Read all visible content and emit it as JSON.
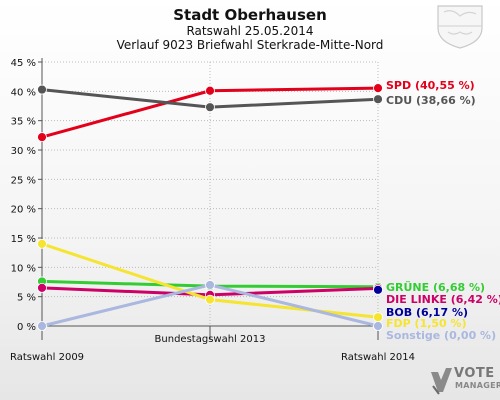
{
  "header": {
    "title": "Stadt Oberhausen",
    "subtitle": "Ratswahl 25.05.2014",
    "subsubtitle": "Verlauf 9023 Briefwahl Sterkrade-Mitte-Nord"
  },
  "logo": {
    "line1": "VOTE",
    "line2": "MANAGER"
  },
  "chart_data": {
    "type": "line",
    "title": "Stadt Oberhausen",
    "categories": [
      "Ratswahl 2009",
      "Bundestagswahl 2013",
      "Ratswahl 2014"
    ],
    "ylim": [
      0,
      45
    ],
    "yticks": [
      0,
      5,
      10,
      15,
      20,
      25,
      30,
      35,
      40,
      45
    ],
    "ytick_labels": [
      "0 %",
      "5 %",
      "10 %",
      "15 %",
      "20 %",
      "25 %",
      "30 %",
      "35 %",
      "40 %",
      "45 %"
    ],
    "grid": true,
    "series": [
      {
        "name": "SPD",
        "values": [
          32.2,
          40.1,
          40.55
        ],
        "color": "#e3001b",
        "label": "SPD (40,55 %)"
      },
      {
        "name": "CDU",
        "values": [
          40.3,
          37.3,
          38.66
        ],
        "color": "#555555",
        "label": "CDU (38,66 %)"
      },
      {
        "name": "GRÜNE",
        "values": [
          7.6,
          6.8,
          6.68
        ],
        "color": "#33cc33",
        "label": "GRÜNE (6,68 %)"
      },
      {
        "name": "DIE LINKE",
        "values": [
          6.5,
          5.3,
          6.42
        ],
        "color": "#cc0066",
        "label": "DIE LINKE (6,42 %)"
      },
      {
        "name": "BOB",
        "values": [
          null,
          null,
          6.17
        ],
        "color": "#000099",
        "label": "BOB (6,17 %)"
      },
      {
        "name": "FDP",
        "values": [
          14.0,
          4.5,
          1.5
        ],
        "color": "#f5e430",
        "label": "FDP (1,50 %)"
      },
      {
        "name": "Sonstige",
        "values": [
          0.0,
          7.0,
          0.0
        ],
        "color": "#aab8e0",
        "label": "Sonstige (0,00 %)"
      }
    ]
  }
}
